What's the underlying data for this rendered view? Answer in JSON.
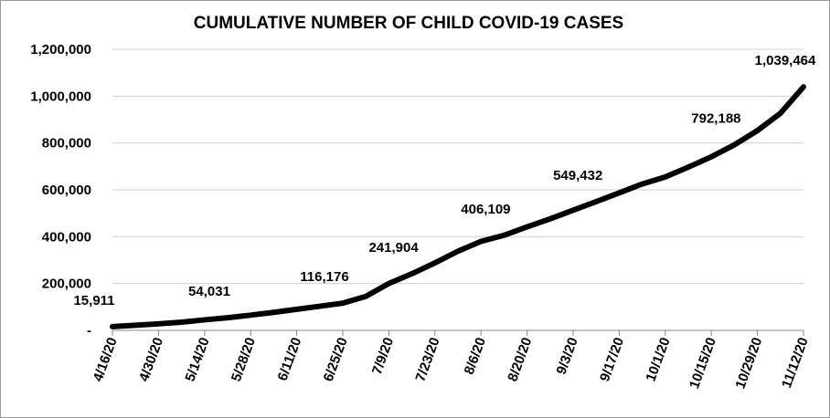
{
  "chart_data": {
    "type": "line",
    "title": "CUMULATIVE NUMBER OF CHILD COVID-19 CASES",
    "categories": [
      "4/16/20",
      null,
      "4/30/20",
      null,
      "5/14/20",
      null,
      "5/28/20",
      null,
      "6/11/20",
      null,
      "6/25/20",
      null,
      "7/9/20",
      null,
      "7/23/20",
      null,
      "8/6/20",
      null,
      "8/20/20",
      null,
      "9/3/20",
      null,
      "9/17/20",
      null,
      "10/1/20",
      null,
      "10/15/20",
      null,
      "10/29/20",
      null,
      "11/12/20"
    ],
    "series": [
      {
        "name": "Cumulative child cases",
        "color": "#000000",
        "values": [
          15911,
          22000,
          28000,
          35000,
          45000,
          54031,
          65000,
          77000,
          90000,
          103000,
          116176,
          145000,
          200000,
          241904,
          288000,
          338000,
          380000,
          406109,
          442000,
          476000,
          513000,
          549432,
          587000,
          625000,
          655000,
          697000,
          741000,
          792188,
          853000,
          927000,
          1039464
        ],
        "value_labels": [
          "15,911",
          null,
          null,
          null,
          null,
          "54,031",
          null,
          null,
          null,
          null,
          "116,176",
          null,
          null,
          "241,904",
          null,
          null,
          null,
          "406,109",
          null,
          null,
          null,
          "549,432",
          null,
          null,
          null,
          null,
          null,
          "792,188",
          null,
          null,
          "1,039,464"
        ]
      }
    ],
    "ylim": [
      0,
      1200000
    ],
    "yticks": [
      {
        "value": 0,
        "label": "-"
      },
      {
        "value": 200000,
        "label": "200,000"
      },
      {
        "value": 400000,
        "label": "400,000"
      },
      {
        "value": 600000,
        "label": "600,000"
      },
      {
        "value": 800000,
        "label": "800,000"
      },
      {
        "value": 1000000,
        "label": "1,000,000"
      },
      {
        "value": 1200000,
        "label": "1,200,000"
      }
    ],
    "grid": true
  }
}
